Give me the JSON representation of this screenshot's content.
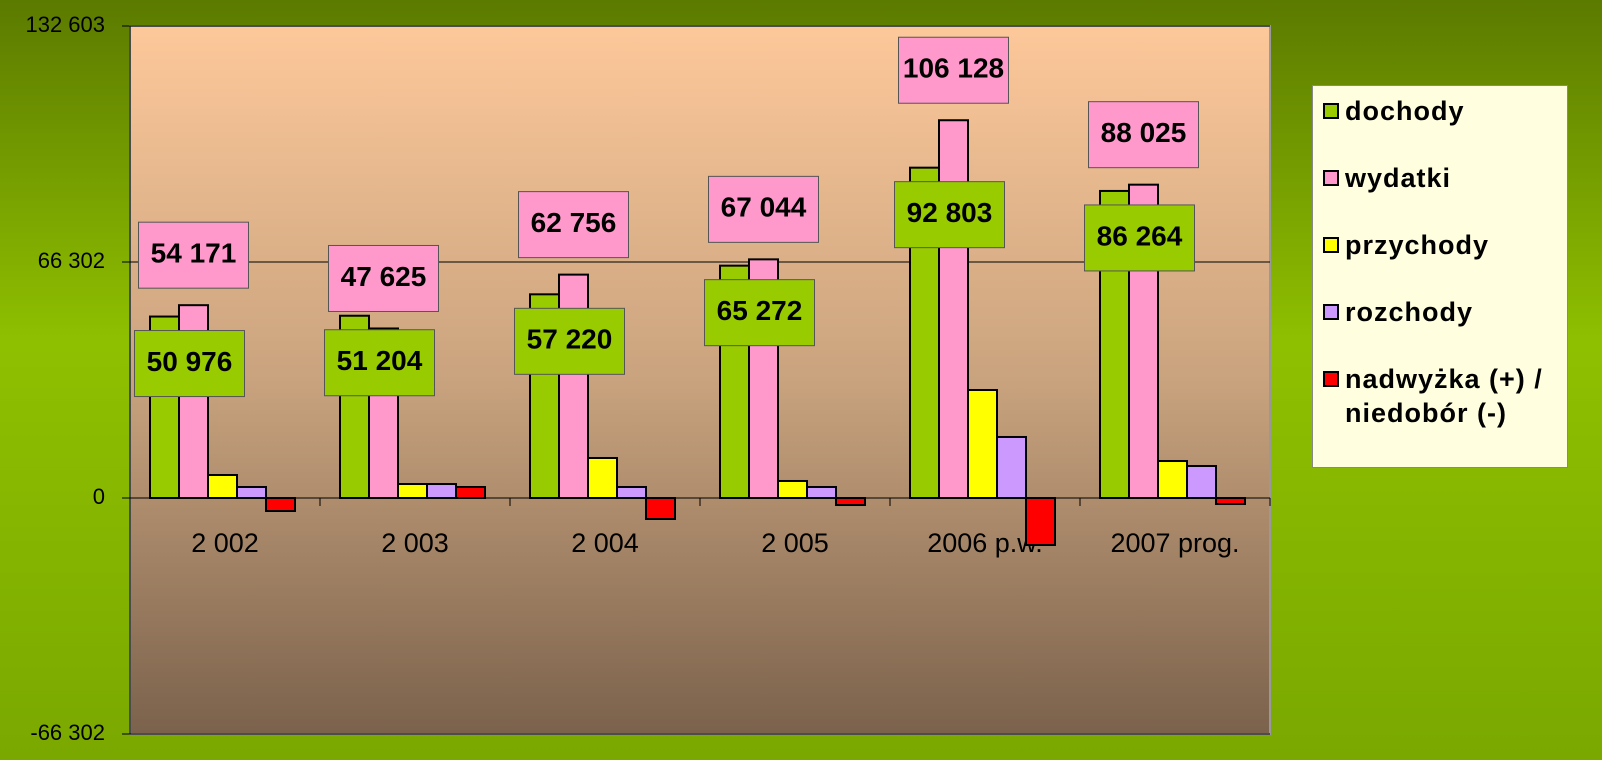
{
  "chart_data": {
    "type": "bar",
    "categories": [
      "2 002",
      "2 003",
      "2 004",
      "2 005",
      "2006 p.w.",
      "2007 prog."
    ],
    "series": [
      {
        "name": "dochody",
        "color": "#99cc00",
        "values": [
          50976,
          51204,
          57220,
          65272,
          92803,
          86264
        ],
        "value_labels": [
          "50 976",
          "51 204",
          "57 220",
          "65 272",
          "92 803",
          "86 264"
        ]
      },
      {
        "name": "wydatki",
        "color": "#ff99cc",
        "values": [
          54171,
          47625,
          62756,
          67044,
          106128,
          88025
        ],
        "value_labels": [
          "54 171",
          "47 625",
          "62 756",
          "67 044",
          "106 128",
          "88 025"
        ]
      },
      {
        "name": "przychody",
        "color": "#ffff00",
        "values": [
          6460,
          3930,
          11240,
          4780,
          30340,
          10390
        ]
      },
      {
        "name": "rozchody",
        "color": "#cc99ff",
        "values": [
          3090,
          3930,
          3090,
          3090,
          17140,
          8990
        ]
      },
      {
        "name": "nadwyżka (+) / niedobór (-)",
        "color": "#ff0000",
        "values": [
          -3650,
          3090,
          -5900,
          -1970,
          -13200,
          -1690
        ]
      }
    ],
    "ylim": [
      -66302,
      132603
    ],
    "yticks": [
      {
        "value": -66302,
        "label": "-66 302"
      },
      0,
      {
        "value": 66302,
        "label": "66 302"
      },
      {
        "value": 132603,
        "label": "132 603"
      }
    ],
    "grid": true,
    "legend": "right"
  }
}
